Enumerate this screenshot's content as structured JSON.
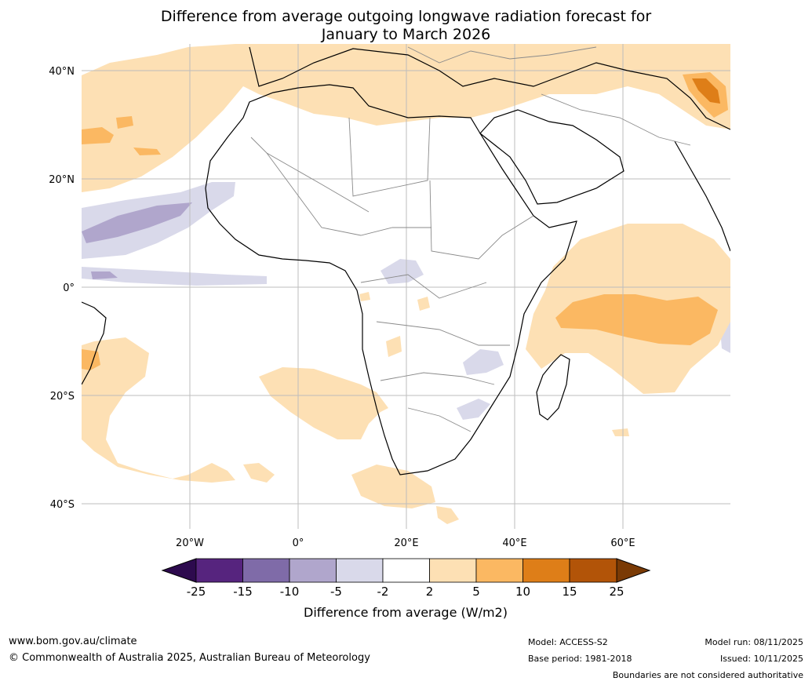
{
  "chart_data": {
    "type": "heatmap",
    "title_line1": "Difference from average outgoing longwave radiation forecast for",
    "title_line2": "January to March 2026",
    "lat_ticks": [
      "40°N",
      "20°N",
      "0°",
      "20°S",
      "40°S"
    ],
    "lon_ticks": [
      "20°W",
      "0°",
      "20°E",
      "40°E",
      "60°E"
    ],
    "lat_values": [
      40,
      20,
      0,
      -20,
      -40
    ],
    "lon_values": [
      -20,
      0,
      20,
      40,
      60
    ],
    "lon_range": [
      -40,
      80
    ],
    "lat_range": [
      -45,
      45
    ],
    "colorbar": {
      "label": "Difference from average (W/m2)",
      "bounds": [
        "-25",
        "-15",
        "-10",
        "-5",
        "-2",
        "2",
        "5",
        "10",
        "15",
        "25"
      ],
      "colors": [
        "#56247e",
        "#7f6ba8",
        "#b0a6cc",
        "#d9d9ea",
        "#ffffff",
        "#fde0b4",
        "#fbb862",
        "#de7e18",
        "#b25408"
      ],
      "under_color": "#2d0a4e",
      "over_color": "#7a3a05"
    },
    "regions": [
      {
        "name": "north-atlantic-positive",
        "level": "2 to 5"
      },
      {
        "name": "mediterranean-positive",
        "level": "2 to 5"
      },
      {
        "name": "tropical-atlantic-negative",
        "level": "-5 to -2"
      },
      {
        "name": "tropical-atlantic-core-negative",
        "level": "-10 to -5"
      },
      {
        "name": "indian-ocean-positive",
        "level": "2 to 5"
      },
      {
        "name": "indian-ocean-core-positive",
        "level": "5 to 10"
      },
      {
        "name": "south-atlantic-positive",
        "level": "2 to 5"
      },
      {
        "name": "southern-africa-positive",
        "level": "2 to 5"
      },
      {
        "name": "east-africa-negative",
        "level": "-5 to -2"
      },
      {
        "name": "iran-positive",
        "level": "10 to 15"
      }
    ]
  },
  "footer": {
    "website": "www.bom.gov.au/climate",
    "copyright": "© Commonwealth of Australia 2025, Australian Bureau of Meteorology",
    "model": "Model: ACCESS-S2",
    "base_period": "Base period: 1981-2018",
    "model_run": "Model run: 08/11/2025",
    "issued": "Issued: 10/11/2025",
    "disclaimer": "Boundaries are not considered authoritative"
  }
}
